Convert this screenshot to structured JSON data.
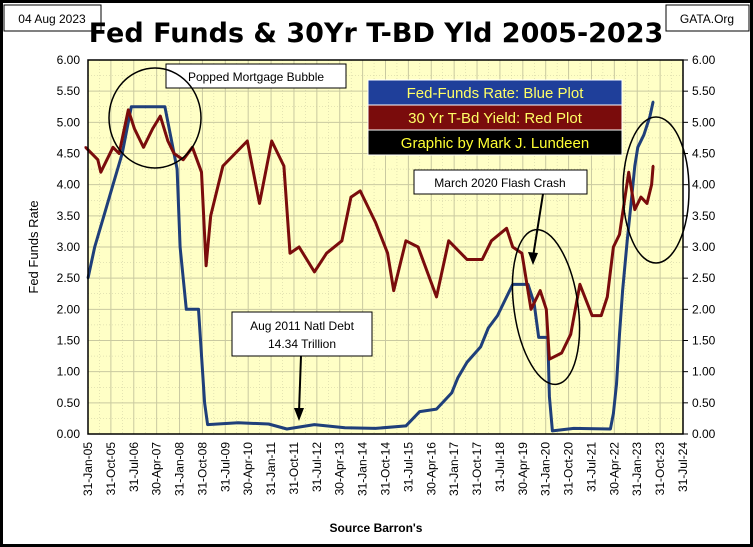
{
  "header": {
    "date": "04 Aug 2023",
    "site": "GATA.Org"
  },
  "legend": {
    "items": [
      {
        "label": "Fed-Funds Rate: Blue Plot",
        "bg": "#1f3f9a",
        "fg": "#ffff66"
      },
      {
        "label": "30 Yr T-Bd Yield: Red Plot",
        "bg": "#7a0c0c",
        "fg": "#ffff66"
      },
      {
        "label": "Graphic by Mark J. Lundeen",
        "bg": "#000000",
        "fg": "#ffff33"
      }
    ]
  },
  "annotations": {
    "bubble": "Popped Mortgage  Bubble",
    "crash": "March 2020 Flash Crash",
    "debt_line1": "Aug 2011  Natl Debt",
    "debt_line2": "14.34 Trillion"
  },
  "chart_data": {
    "type": "line",
    "title": "Fed Funds & 30Yr T-BD Yld 2005-2023",
    "xlabel": "Source Barron's",
    "ylabel": "Fed  Funds  Rate",
    "ylim": [
      0,
      6
    ],
    "yticks": [
      "0.00",
      "0.50",
      "1.00",
      "1.50",
      "2.00",
      "2.50",
      "3.00",
      "3.50",
      "4.00",
      "4.50",
      "5.00",
      "5.50",
      "6.00"
    ],
    "xticks": [
      "31-Jan-05",
      "31-Oct-05",
      "31-Jul-06",
      "30-Apr-07",
      "31-Jan-08",
      "31-Oct-08",
      "31-Jul-09",
      "30-Apr-10",
      "31-Jan-11",
      "31-Oct-11",
      "31-Jul-12",
      "30-Apr-13",
      "31-Jan-14",
      "31-Oct-14",
      "31-Jul-15",
      "30-Apr-16",
      "31-Jan-17",
      "31-Oct-17",
      "31-Jul-18",
      "30-Apr-19",
      "31-Jan-20",
      "31-Oct-20",
      "31-Jul-21",
      "30-Apr-22",
      "31-Jan-23",
      "31-Oct-23",
      "31-Jul-24"
    ],
    "xlim": [
      "31-Jan-05",
      "31-Jul-24"
    ],
    "grid": true,
    "series": [
      {
        "name": "Fed-Funds Rate",
        "color": "#1f3f7a",
        "x": [
          2005.08,
          2005.3,
          2005.6,
          2005.9,
          2006.2,
          2006.5,
          2007.0,
          2007.6,
          2007.8,
          2008.0,
          2008.1,
          2008.3,
          2008.7,
          2008.9,
          2009.0,
          2010.0,
          2011.0,
          2011.6,
          2012.5,
          2013.5,
          2014.5,
          2015.5,
          2015.95,
          2016.5,
          2017.0,
          2017.2,
          2017.5,
          2017.95,
          2018.2,
          2018.5,
          2018.8,
          2019.0,
          2019.5,
          2019.7,
          2019.85,
          2020.15,
          2020.2,
          2020.3,
          2021.0,
          2022.2,
          2022.3,
          2022.4,
          2022.5,
          2022.6,
          2022.75,
          2022.9,
          2023.0,
          2023.1,
          2023.3,
          2023.5,
          2023.6
        ],
        "values": [
          2.5,
          3.0,
          3.5,
          4.0,
          4.5,
          5.25,
          5.25,
          5.25,
          4.75,
          4.25,
          3.0,
          2.0,
          2.0,
          0.5,
          0.15,
          0.18,
          0.16,
          0.08,
          0.15,
          0.1,
          0.09,
          0.13,
          0.36,
          0.4,
          0.66,
          0.9,
          1.15,
          1.4,
          1.7,
          1.9,
          2.2,
          2.4,
          2.4,
          2.1,
          1.55,
          1.55,
          0.6,
          0.05,
          0.09,
          0.08,
          0.33,
          0.8,
          1.6,
          2.3,
          3.1,
          3.8,
          4.3,
          4.6,
          4.8,
          5.1,
          5.33
        ]
      },
      {
        "name": "30 Yr T-Bd Yield",
        "color": "#7a0c0c",
        "x": [
          2005.0,
          2005.4,
          2005.5,
          2005.9,
          2006.1,
          2006.4,
          2006.6,
          2006.9,
          2007.2,
          2007.45,
          2007.7,
          2007.9,
          2008.2,
          2008.5,
          2008.8,
          2008.95,
          2009.1,
          2009.5,
          2009.9,
          2010.3,
          2010.7,
          2010.9,
          2011.1,
          2011.5,
          2011.7,
          2012.0,
          2012.5,
          2012.9,
          2013.4,
          2013.7,
          2014.0,
          2014.5,
          2014.9,
          2015.1,
          2015.5,
          2015.9,
          2016.5,
          2016.9,
          2017.5,
          2018.0,
          2018.3,
          2018.8,
          2019.0,
          2019.3,
          2019.6,
          2019.9,
          2020.1,
          2020.2,
          2020.6,
          2020.9,
          2021.2,
          2021.6,
          2021.9,
          2022.1,
          2022.3,
          2022.5,
          2022.8,
          2023.0,
          2023.2,
          2023.4,
          2023.55,
          2023.6
        ],
        "values": [
          4.6,
          4.4,
          4.2,
          4.6,
          4.5,
          5.2,
          4.9,
          4.6,
          4.9,
          5.1,
          4.7,
          4.5,
          4.4,
          4.6,
          4.2,
          2.7,
          3.5,
          4.3,
          4.5,
          4.7,
          3.7,
          4.2,
          4.7,
          4.3,
          2.9,
          3.0,
          2.6,
          2.9,
          3.1,
          3.8,
          3.9,
          3.4,
          2.9,
          2.3,
          3.1,
          3.0,
          2.2,
          3.1,
          2.8,
          2.8,
          3.1,
          3.3,
          3.0,
          2.9,
          2.0,
          2.3,
          2.0,
          1.2,
          1.3,
          1.6,
          2.4,
          1.9,
          1.9,
          2.2,
          3.0,
          3.2,
          4.2,
          3.6,
          3.8,
          3.7,
          4.0,
          4.3
        ]
      }
    ]
  }
}
